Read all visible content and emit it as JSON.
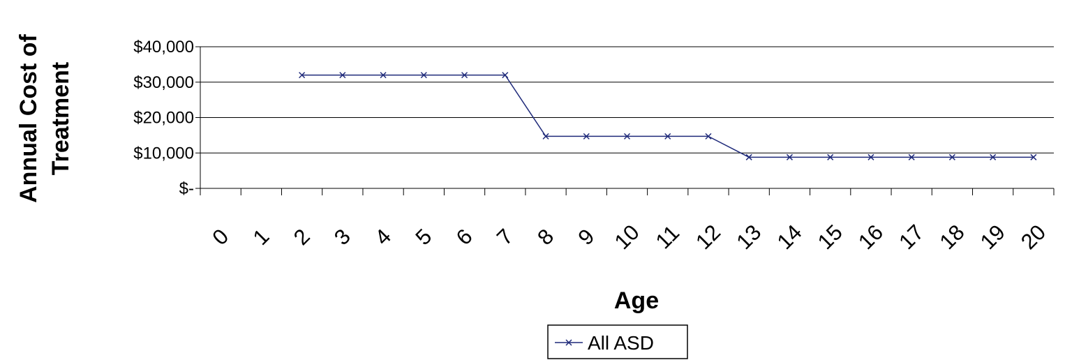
{
  "chart_data": {
    "type": "line",
    "title": "",
    "xlabel": "Age",
    "ylabel": [
      "Annual Cost of",
      "Treatment"
    ],
    "categories": [
      "0",
      "1",
      "2",
      "3",
      "4",
      "5",
      "6",
      "7",
      "8",
      "9",
      "10",
      "11",
      "12",
      "13",
      "14",
      "15",
      "16",
      "17",
      "18",
      "19",
      "20"
    ],
    "y_tick_labels": [
      "$-",
      "$10,000",
      "$20,000",
      "$30,000",
      "$40,000"
    ],
    "y_ticks": [
      0,
      10000,
      20000,
      30000,
      40000
    ],
    "ylim": [
      0,
      40000
    ],
    "grid": "horizontal",
    "legend_position": "bottom",
    "series": [
      {
        "name": "All ASD",
        "color": "#1f2a7a",
        "marker": "x",
        "x": [
          "2",
          "3",
          "4",
          "5",
          "6",
          "7",
          "8",
          "9",
          "10",
          "11",
          "12",
          "13",
          "14",
          "15",
          "16",
          "17",
          "18",
          "19",
          "20"
        ],
        "values": [
          32000,
          32000,
          32000,
          32000,
          32000,
          32000,
          14700,
          14700,
          14700,
          14700,
          14700,
          8800,
          8800,
          8800,
          8800,
          8800,
          8800,
          8800,
          8800
        ]
      }
    ]
  }
}
